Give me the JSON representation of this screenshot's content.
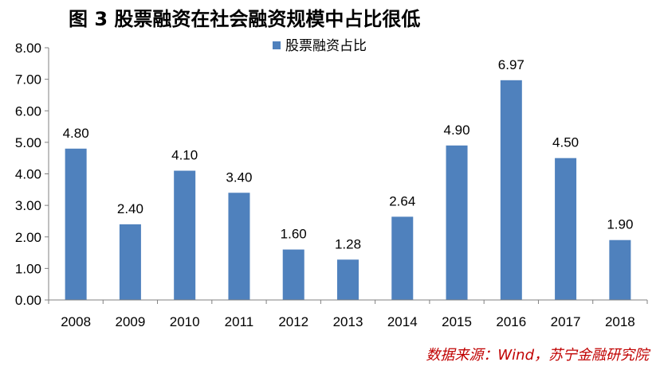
{
  "title": "图 3  股票融资在社会融资规模中占比很低",
  "source": "数据来源：Wind，苏宁金融研究院",
  "colors": {
    "bar": "#4f81bd",
    "axis": "#808080",
    "source": "#c00000"
  },
  "chart_data": {
    "type": "bar",
    "title": "图 3  股票融资在社会融资规模中占比很低",
    "categories": [
      "2008",
      "2009",
      "2010",
      "2011",
      "2012",
      "2013",
      "2014",
      "2015",
      "2016",
      "2017",
      "2018"
    ],
    "series": [
      {
        "name": "股票融资占比",
        "values": [
          4.8,
          2.4,
          4.1,
          3.4,
          1.6,
          1.28,
          2.64,
          4.9,
          6.97,
          4.5,
          1.9
        ]
      }
    ],
    "data_labels": [
      "4.80",
      "2.40",
      "4.10",
      "3.40",
      "1.60",
      "1.28",
      "2.64",
      "4.90",
      "6.97",
      "4.50",
      "1.90"
    ],
    "y_ticks": [
      "0.00",
      "1.00",
      "2.00",
      "3.00",
      "4.00",
      "5.00",
      "6.00",
      "7.00",
      "8.00"
    ],
    "ylim": [
      0,
      8
    ],
    "xlabel": "",
    "ylabel": "",
    "grid": false,
    "legend_position": "top-center"
  }
}
